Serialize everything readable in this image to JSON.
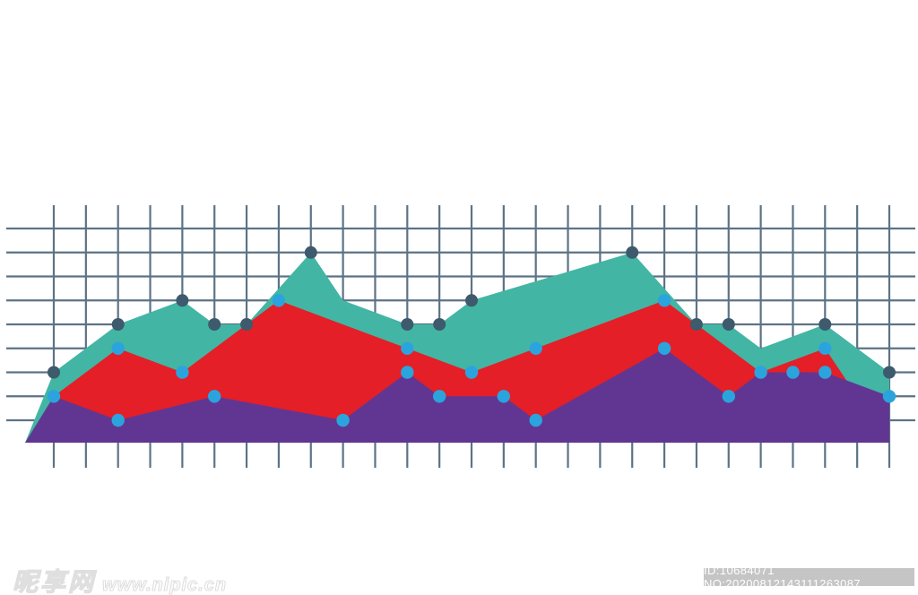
{
  "watermark": {
    "logo_text": "昵享网",
    "site_text": "www.nipic.cn"
  },
  "id_bar": {
    "text": "ID:10684071 NO:20200812143111263087"
  },
  "colors": {
    "background": "#ffffff",
    "teal": "#43B5A4",
    "red": "#E41F27",
    "purple": "#613692",
    "dot_dark": "#3E5A6D",
    "dot_blue": "#2BA4DE",
    "grid": "#5C7386",
    "id_bar_bg": "#C5C5C5",
    "id_bar_text": "#ffffff"
  },
  "chart_data": {
    "type": "area",
    "title": "",
    "xlabel": "",
    "ylabel": "",
    "legend": [],
    "grid_on": true,
    "note": "Decorative stacked-look area chart on a hand-drawn style grid; no axis labels. Points are given as [column,row] grid intersections: column 0..26 left-to-right, row 0..8 top-to-bottom. Dots mark data vertices.",
    "layout": {
      "col0_x": 60,
      "col_step": 35.846,
      "cols": 27,
      "row0_y": 255,
      "row_step": 26.75,
      "rows": 9,
      "vline_top_y": 229,
      "vline_bottom_y": 522,
      "hline_left_x": 7,
      "hline_right_x": 1021,
      "baseline_y": 494,
      "left_apex_x": 28,
      "grid_stroke_width": 2.2,
      "dark_dot_radius": 7,
      "blue_dot_radius": 7.2
    },
    "series": [
      {
        "name": "teal-area",
        "color_key": "teal",
        "dot_color_key": "dot_dark",
        "starts_at_apex": true,
        "edge": [
          [
            0,
            6
          ],
          [
            2,
            4
          ],
          [
            4,
            3
          ],
          [
            5,
            4
          ],
          [
            6,
            4
          ],
          [
            8,
            1
          ],
          [
            9,
            3
          ],
          [
            11,
            4
          ],
          [
            12,
            4
          ],
          [
            13,
            3
          ],
          [
            18,
            1
          ],
          [
            20,
            4
          ],
          [
            21,
            4
          ],
          [
            22,
            5
          ],
          [
            24,
            4
          ],
          [
            26,
            6
          ]
        ],
        "dot_cols": [
          0,
          2,
          4,
          5,
          6,
          8,
          11,
          12,
          13,
          18,
          20,
          21,
          24,
          26
        ]
      },
      {
        "name": "red-area",
        "color_key": "red",
        "dot_color_key": "dot_blue",
        "starts_at_apex": false,
        "edge": [
          [
            0,
            7
          ],
          [
            2,
            5
          ],
          [
            4,
            6
          ],
          [
            7,
            3
          ],
          [
            11,
            5
          ],
          [
            13,
            6
          ],
          [
            15,
            5
          ],
          [
            19,
            3
          ],
          [
            22,
            6
          ],
          [
            24,
            5
          ],
          [
            25,
            7
          ]
        ],
        "dot_cols": [
          0,
          2,
          4,
          7,
          11,
          13,
          15,
          19,
          22,
          24
        ]
      },
      {
        "name": "purple-area",
        "color_key": "purple",
        "dot_color_key": "dot_blue",
        "starts_at_apex": true,
        "edge": [
          [
            0,
            7
          ],
          [
            2,
            8
          ],
          [
            5,
            7
          ],
          [
            9,
            8
          ],
          [
            11,
            6
          ],
          [
            12,
            7
          ],
          [
            14,
            7
          ],
          [
            15,
            8
          ],
          [
            19,
            5
          ],
          [
            21,
            7
          ],
          [
            22,
            6
          ],
          [
            23,
            6
          ],
          [
            24,
            6
          ],
          [
            26,
            7
          ]
        ],
        "dot_cols": [
          2,
          5,
          9,
          11,
          12,
          14,
          15,
          19,
          21,
          23,
          24,
          26
        ]
      }
    ]
  }
}
